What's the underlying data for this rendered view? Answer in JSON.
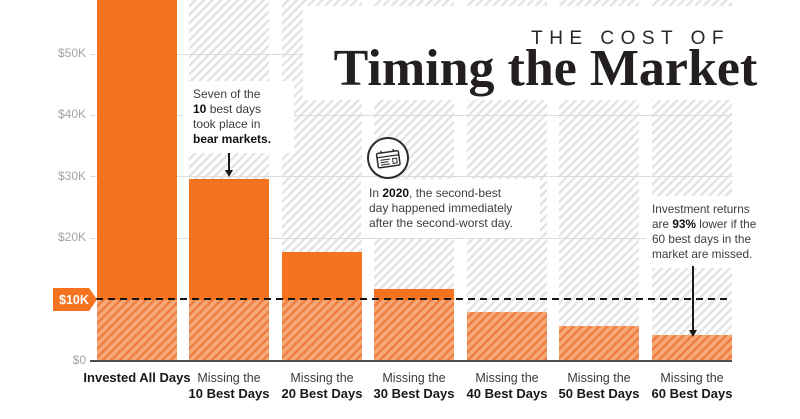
{
  "title": {
    "kicker": "THE COST OF",
    "main": "Timing the Market"
  },
  "chart_data": {
    "type": "bar",
    "title": "The Cost of Timing the Market",
    "unit": "USD",
    "categories": [
      "Invested All Days",
      "Missing the 10 Best Days",
      "Missing the 20 Best Days",
      "Missing the 30 Best Days",
      "Missing the 40 Best Days",
      "Missing the 50 Best Days",
      "Missing the 60 Best Days"
    ],
    "categories_lines": [
      [
        "Invested All Days"
      ],
      [
        "Missing the",
        "10 Best Days"
      ],
      [
        "Missing the",
        "20 Best Days"
      ],
      [
        "Missing the",
        "30 Best Days"
      ],
      [
        "Missing the",
        "40 Best Days"
      ],
      [
        "Missing the",
        "50 Best Days"
      ],
      [
        "Missing the",
        "60 Best Days"
      ]
    ],
    "values": [
      64800,
      29700,
      17800,
      11700,
      8000,
      5700,
      4200
    ],
    "first_bar_clipped_at_top": true,
    "initial_investment_reference_line": 10000,
    "ylim": [
      0,
      58800
    ],
    "grid": "horizontal",
    "yticks": [
      {
        "label": "$50K",
        "value": 50000
      },
      {
        "label": "$40K",
        "value": 40000
      },
      {
        "label": "$30K",
        "value": 30000
      },
      {
        "label": "$20K",
        "value": 20000
      }
    ],
    "ten_k_badge": "$10K",
    "zero_label": "$0"
  },
  "annotations": {
    "bear_note": {
      "lines": [
        [
          {
            "t": "Seven of the",
            "b": 0
          }
        ],
        [
          {
            "t": "10",
            "b": 1
          },
          {
            "t": " best days",
            "b": 0
          }
        ],
        [
          {
            "t": "took place in",
            "b": 0
          }
        ],
        [
          {
            "t": "bear markets.",
            "b": 1
          }
        ]
      ]
    },
    "covid_note": {
      "lines": [
        [
          {
            "t": "In ",
            "b": 0
          },
          {
            "t": "2020",
            "b": 1
          },
          {
            "t": ", the second-best",
            "b": 0
          }
        ],
        [
          {
            "t": "day happened immediately",
            "b": 0
          }
        ],
        [
          {
            "t": "after the second-worst day.",
            "b": 0
          }
        ]
      ]
    },
    "returns_note": {
      "lines": [
        [
          {
            "t": "Investment returns",
            "b": 0
          }
        ],
        [
          {
            "t": "are ",
            "b": 0
          },
          {
            "t": "93%",
            "b": 1
          },
          {
            "t": " lower if the",
            "b": 0
          }
        ],
        [
          {
            "t": "60 best days in the",
            "b": 0
          }
        ],
        [
          {
            "t": "market are missed.",
            "b": 0
          }
        ]
      ]
    }
  },
  "colors": {
    "bar_solid": "#f5731e",
    "bar_hatch_bg": "#f7a877",
    "bar_hatch_stripe": "#ef7f41",
    "background_hatch_stripe": "#e4e4e4",
    "title_ink": "#231f20",
    "dashed_line": "#141414"
  }
}
